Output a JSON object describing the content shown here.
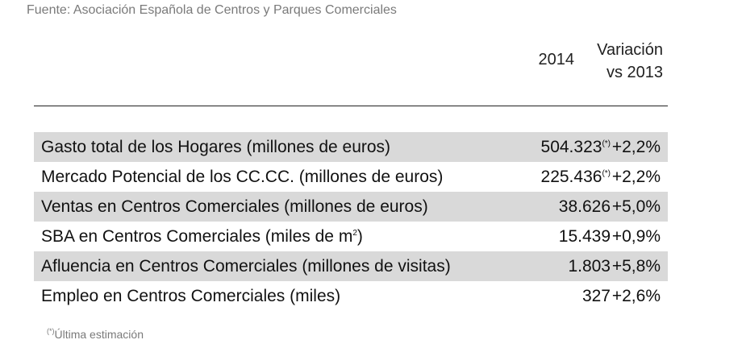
{
  "source": "Fuente: Asociación Española de Centros y Parques Comerciales",
  "header": {
    "year": "2014",
    "variation_line1": "Variación",
    "variation_line2": "vs 2013"
  },
  "rows": [
    {
      "label": "Gasto total de los Hogares (millones de euros)",
      "value": "504.323",
      "mark": "(*)",
      "change": "+2,2%"
    },
    {
      "label": "Mercado Potencial de los CC.CC. (millones de euros)",
      "value": "225.436",
      "mark": "(*)",
      "change": "+2,2%"
    },
    {
      "label": "Ventas en Centros Comerciales (millones de euros)",
      "value": "38.626",
      "mark": "",
      "change": "+5,0%"
    },
    {
      "label_pre": "SBA en Centros Comerciales (miles de m",
      "label_sup": "2",
      "label_post": ")",
      "value": "15.439",
      "mark": "",
      "change": "+0,9%"
    },
    {
      "label": "Afluencia en Centros Comerciales (millones de visitas)",
      "value": "1.803",
      "mark": "",
      "change": "+5,8%"
    },
    {
      "label": "Empleo en Centros Comerciales (miles)",
      "value": "327",
      "mark": "",
      "change": "+2,6%"
    }
  ],
  "footnote": {
    "mark": "(*)",
    "text": "Última estimación"
  }
}
